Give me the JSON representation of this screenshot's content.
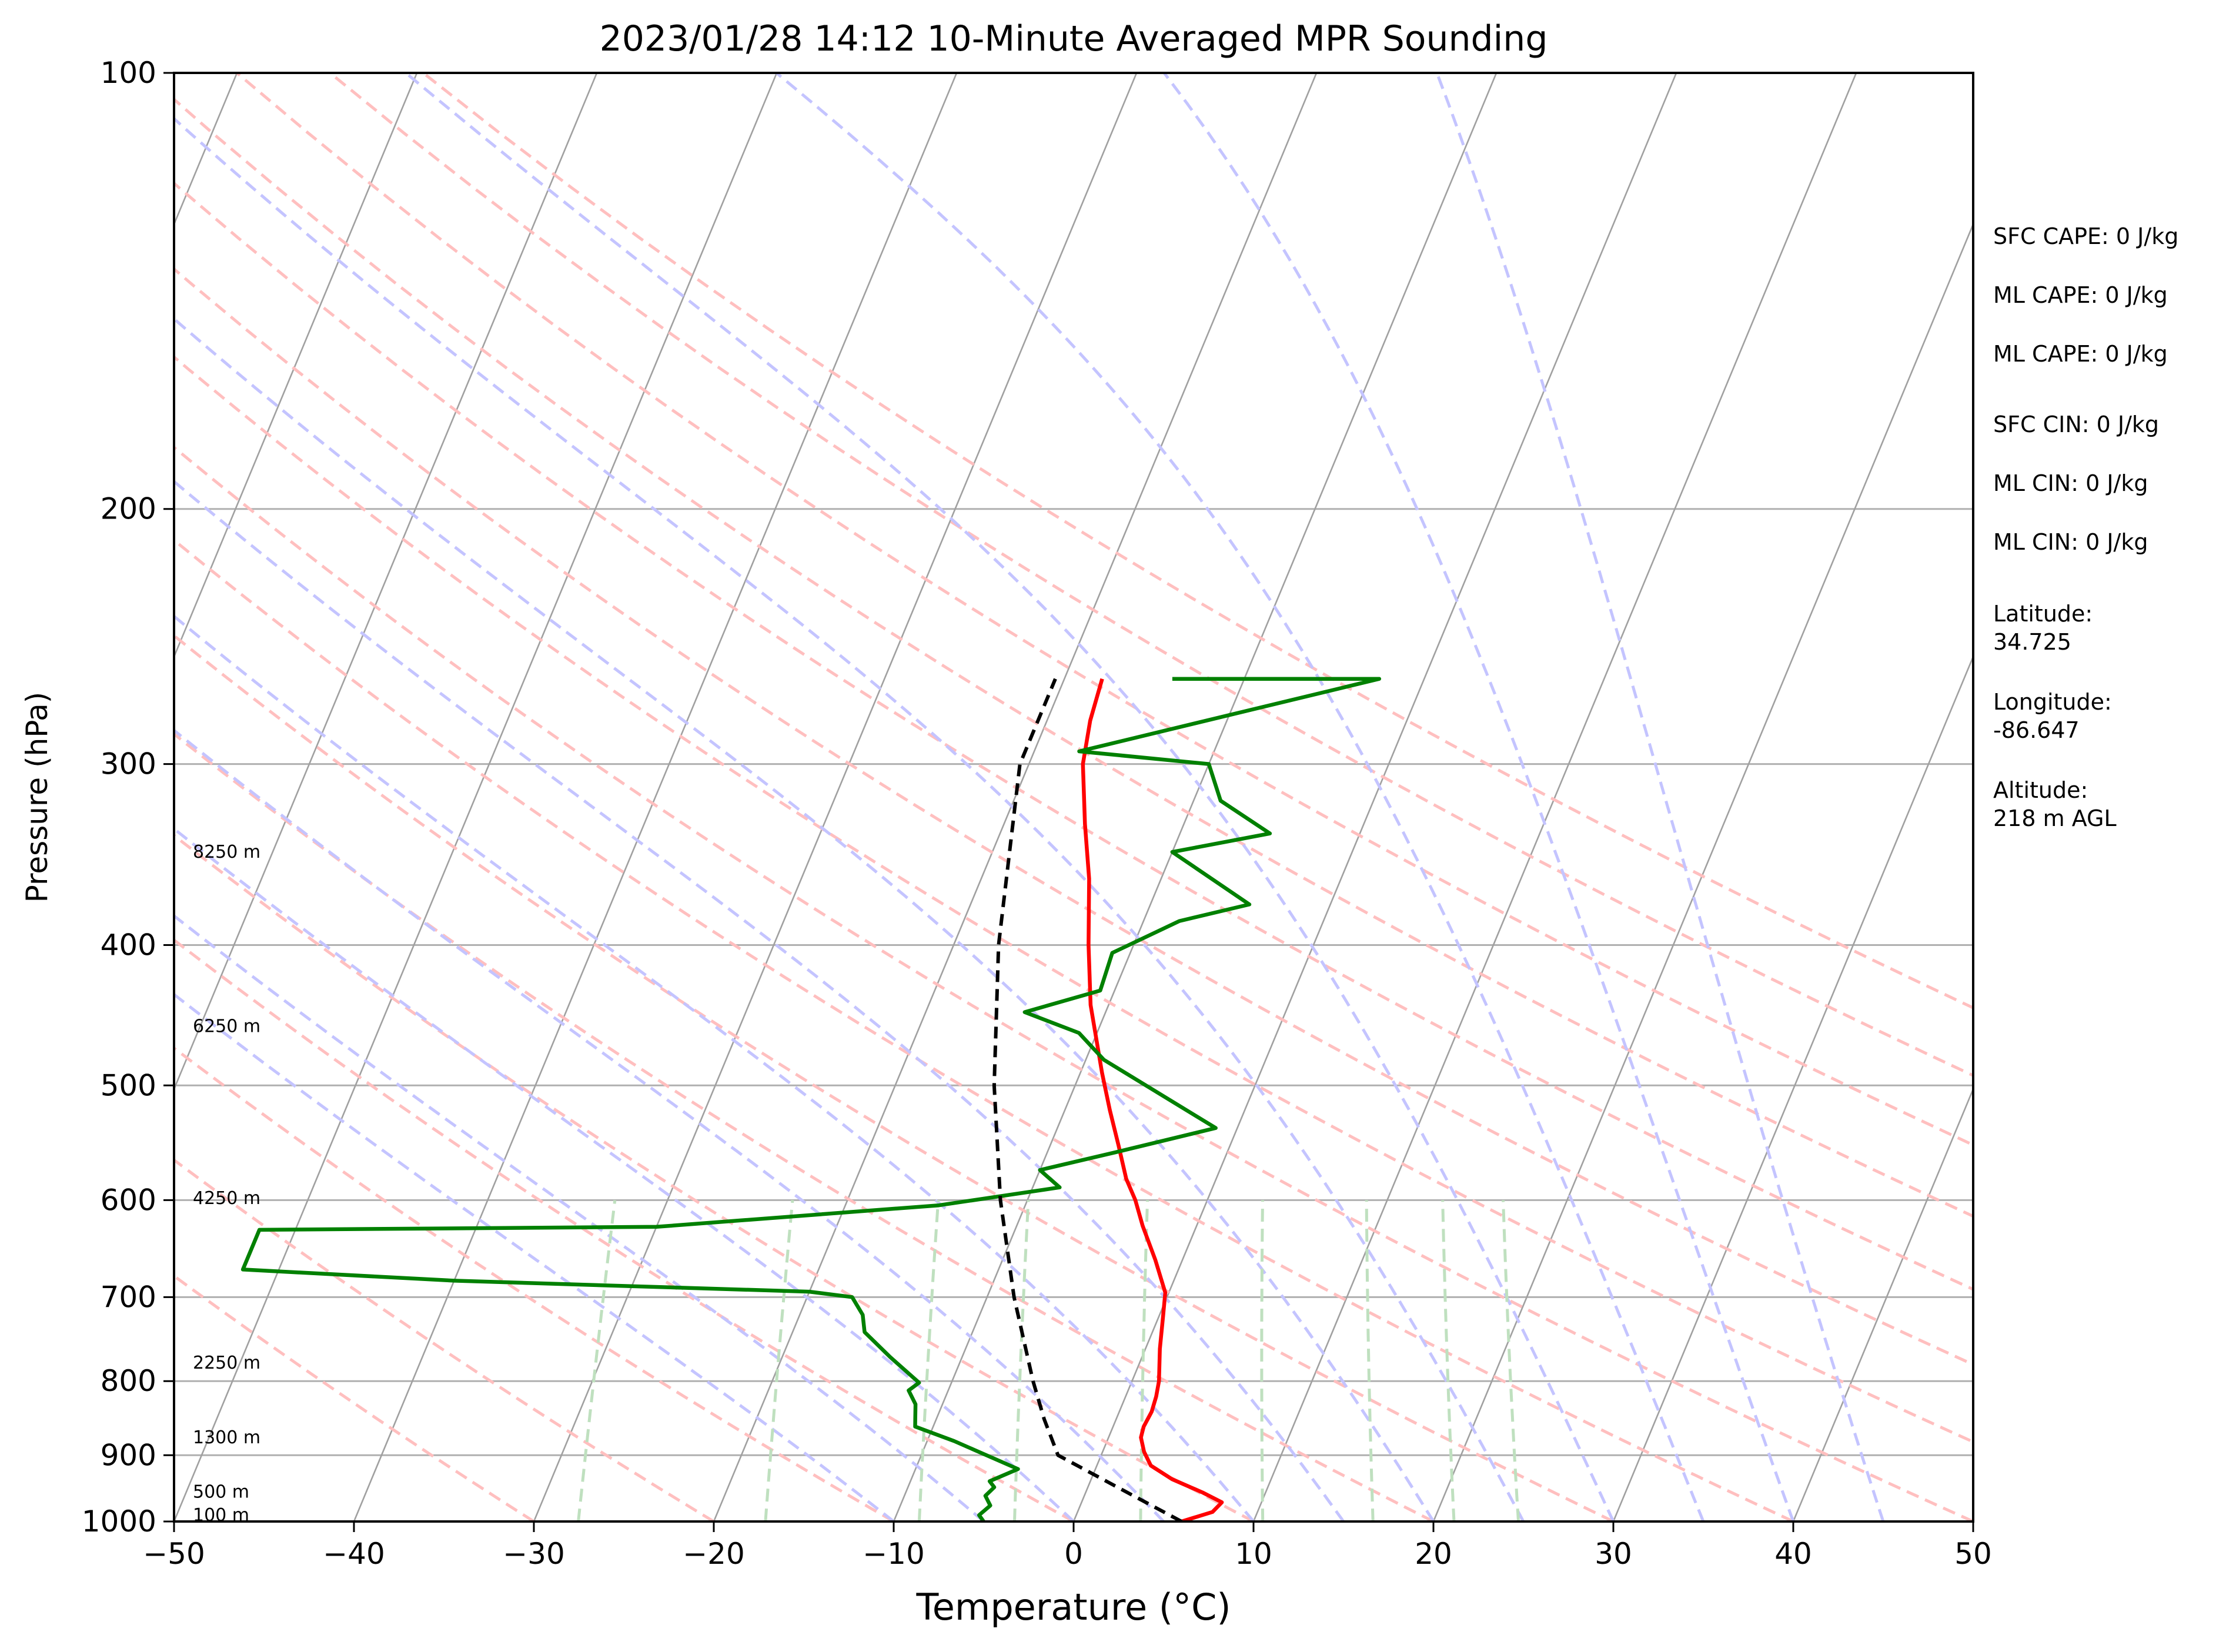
{
  "chart_data": {
    "type": "line",
    "subtype": "skew-t log-p",
    "title": "2023/01/28 14:12 10-Minute Averaged MPR Sounding",
    "xlabel": "Temperature (°C)",
    "ylabel": "Pressure (hPa)",
    "xlim": [
      -50,
      50
    ],
    "ylim": [
      1000,
      100
    ],
    "y_scale": "log",
    "x_ticks": [
      "−50",
      "−40",
      "−30",
      "−20",
      "−10",
      "0",
      "10",
      "20",
      "30",
      "40",
      "50"
    ],
    "y_ticks": [
      "100",
      "200",
      "300",
      "400",
      "500",
      "600",
      "700",
      "800",
      "900",
      "1000"
    ],
    "horizontal_grid": [
      200,
      300,
      400,
      500,
      600,
      700,
      800,
      900
    ],
    "height_labels": [
      {
        "text": "8250 m",
        "p": 345
      },
      {
        "text": "6250 m",
        "p": 455
      },
      {
        "text": "4250 m",
        "p": 598
      },
      {
        "text": "2250 m",
        "p": 777
      },
      {
        "text": "1300 m",
        "p": 875
      },
      {
        "text": "500 m",
        "p": 954
      },
      {
        "text": "100 m",
        "p": 990
      }
    ],
    "series": [
      {
        "kind": "temperature",
        "color": "#ff0000",
        "points": [
          [
            1000,
            6
          ],
          [
            985,
            7.5
          ],
          [
            970,
            7.8
          ],
          [
            955,
            6.5
          ],
          [
            935,
            4.5
          ],
          [
            915,
            3
          ],
          [
            895,
            2.3
          ],
          [
            875,
            1.8
          ],
          [
            860,
            1.7
          ],
          [
            840,
            1.8
          ],
          [
            820,
            1.7
          ],
          [
            800,
            1.5
          ],
          [
            760,
            0.8
          ],
          [
            720,
            0.2
          ],
          [
            695,
            -0.2
          ],
          [
            660,
            -1.5
          ],
          [
            625,
            -3
          ],
          [
            600,
            -4
          ],
          [
            580,
            -5
          ],
          [
            550,
            -6.2
          ],
          [
            520,
            -7.5
          ],
          [
            490,
            -8.8
          ],
          [
            440,
            -11
          ],
          [
            400,
            -12.5
          ],
          [
            360,
            -14
          ],
          [
            330,
            -15.5
          ],
          [
            300,
            -17
          ],
          [
            280,
            -17.6
          ],
          [
            262,
            -17.9
          ]
        ]
      },
      {
        "kind": "dewpoint",
        "color": "#008000",
        "points": [
          [
            1000,
            -5
          ],
          [
            990,
            -5.4
          ],
          [
            975,
            -5
          ],
          [
            960,
            -5.5
          ],
          [
            947,
            -5.2
          ],
          [
            938,
            -5.6
          ],
          [
            920,
            -4.3
          ],
          [
            880,
            -8.5
          ],
          [
            860,
            -11
          ],
          [
            848,
            -11.2
          ],
          [
            830,
            -11.5
          ],
          [
            812,
            -12.2
          ],
          [
            802,
            -11.8
          ],
          [
            770,
            -14
          ],
          [
            740,
            -16
          ],
          [
            720,
            -16.5
          ],
          [
            700,
            -17.5
          ],
          [
            694,
            -20
          ],
          [
            682,
            -40
          ],
          [
            670,
            -52
          ],
          [
            629,
            -52
          ],
          [
            626,
            -30
          ],
          [
            605,
            -14.8
          ],
          [
            588,
            -8.5
          ],
          [
            572,
            -10
          ],
          [
            556,
            -6.2
          ],
          [
            535,
            -1.2
          ],
          [
            480,
            -9
          ],
          [
            460,
            -11
          ],
          [
            445,
            -14.5
          ],
          [
            430,
            -10.8
          ],
          [
            405,
            -11
          ],
          [
            385,
            -8
          ],
          [
            375,
            -4.5
          ],
          [
            345,
            -10
          ],
          [
            335,
            -5
          ],
          [
            318,
            -8.5
          ],
          [
            300,
            -10
          ],
          [
            294,
            -17.5
          ],
          [
            262,
            -2.5
          ],
          [
            262,
            -14
          ]
        ]
      },
      {
        "kind": "parcel",
        "color": "#000000",
        "style": "dashed",
        "points": [
          [
            1000,
            6
          ],
          [
            950,
            1.9
          ],
          [
            900,
            -2.4
          ],
          [
            850,
            -4
          ],
          [
            800,
            -5.5
          ],
          [
            700,
            -8.5
          ],
          [
            600,
            -11.5
          ],
          [
            500,
            -14.5
          ],
          [
            400,
            -17.5
          ],
          [
            300,
            -20.5
          ],
          [
            262,
            -20.5
          ]
        ]
      }
    ]
  },
  "colors": {
    "temperature": "#ff0000",
    "dewpoint": "#008000",
    "parcel": "#000000",
    "isotherm": "#a0a0a0",
    "dry_adiabat": "#ffbfbf",
    "moist_adiabat": "#c4c4ff",
    "mixing_ratio": "#bfe0bf"
  },
  "side_panel": {
    "sfc_cape": "SFC CAPE: 0 J/kg",
    "ml_cape_1": "ML CAPE: 0 J/kg",
    "ml_cape_2": "ML CAPE: 0 J/kg",
    "sfc_cin": "SFC CIN: 0 J/kg",
    "ml_cin_1": "ML CIN: 0 J/kg",
    "ml_cin_2": "ML CIN: 0 J/kg",
    "latitude": "Latitude:\n34.725",
    "longitude": "Longitude:\n-86.647",
    "altitude": "Altitude:\n218 m AGL"
  }
}
